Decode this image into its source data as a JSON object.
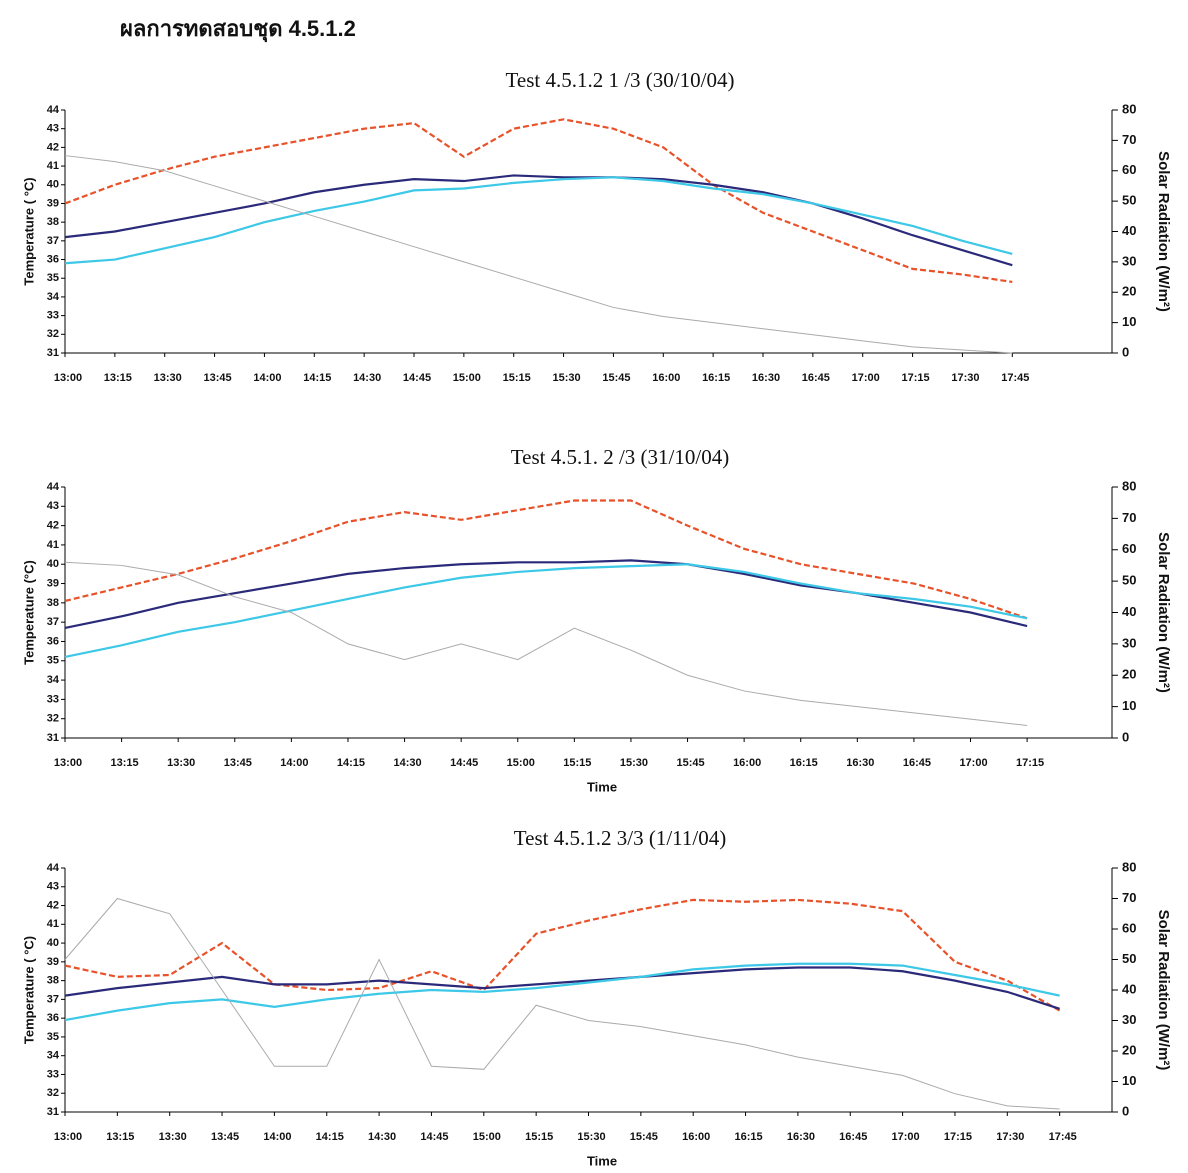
{
  "header": {
    "title": "ผลการทดสอบชุด 4.5.1.2"
  },
  "chart_data": [
    {
      "type": "line",
      "title": "Test 4.5.1.2 1 /3 (30/10/04)",
      "y_label": "Temperature ( °C)",
      "y2_label": "Solar Radiation (W/m²)",
      "categories": [
        "13:00",
        "13:15",
        "13:30",
        "13:45",
        "14:00",
        "14:15",
        "14:30",
        "14:45",
        "15:00",
        "15:15",
        "15:30",
        "15:45",
        "16:00",
        "16:15",
        "16:30",
        "16:45",
        "17:00",
        "17:15",
        "17:30",
        "17:45"
      ],
      "ylim": [
        31,
        44
      ],
      "yticks": [
        31,
        32,
        33,
        34,
        35,
        36,
        37,
        38,
        39,
        40,
        41,
        42,
        43,
        44
      ],
      "y2lim": [
        0,
        80
      ],
      "y2ticks": [
        0,
        10,
        20,
        30,
        40,
        50,
        60,
        70,
        80
      ],
      "series": [
        {
          "color": "#e8522a",
          "dash": true,
          "values": [
            39,
            40,
            40.8,
            41.5,
            42,
            42.5,
            43,
            43.3,
            41.5,
            43,
            43.5,
            43,
            42,
            40,
            38.5,
            37.5,
            36.5,
            35.5,
            35.2,
            34.8
          ]
        },
        {
          "color": "#2b2a7a",
          "values": [
            37.2,
            37.5,
            38,
            38.5,
            39,
            39.6,
            40,
            40.3,
            40.2,
            40.5,
            40.4,
            40.4,
            40.3,
            40,
            39.6,
            39,
            38.2,
            37.3,
            36.5,
            35.7
          ]
        },
        {
          "color": "#3cc8e6",
          "values": [
            35.8,
            36,
            36.6,
            37.2,
            38,
            38.6,
            39.1,
            39.7,
            39.8,
            40.1,
            40.3,
            40.4,
            40.2,
            39.8,
            39.5,
            39,
            38.4,
            37.8,
            37,
            36.3
          ]
        },
        {
          "color": "#aaaaaa",
          "axis": "y2",
          "values": [
            65,
            63,
            60,
            55,
            50,
            45,
            40,
            35,
            30,
            25,
            20,
            15,
            12,
            10,
            8,
            6,
            4,
            2,
            1,
            0
          ]
        }
      ]
    },
    {
      "type": "line",
      "title": "Test 4.5.1. 2 /3 (31/10/04)",
      "y_label": "Temperature  (°C)",
      "y2_label": "Solar Radiation (W/m²)",
      "x_label": "Time",
      "categories": [
        "13:00",
        "13:15",
        "13:30",
        "13:45",
        "14:00",
        "14:15",
        "14:30",
        "14:45",
        "15:00",
        "15:15",
        "15:30",
        "15:45",
        "16:00",
        "16:15",
        "16:30",
        "16:45",
        "17:00",
        "17:15"
      ],
      "ylim": [
        31,
        44
      ],
      "yticks": [
        31,
        32,
        33,
        34,
        35,
        36,
        37,
        38,
        39,
        40,
        41,
        42,
        43,
        44
      ],
      "y2lim": [
        0,
        80
      ],
      "y2ticks": [
        0,
        10,
        20,
        30,
        40,
        50,
        60,
        70,
        80
      ],
      "series": [
        {
          "color": "#e8522a",
          "dash": true,
          "values": [
            38.1,
            38.8,
            39.5,
            40.3,
            41.2,
            42.2,
            42.7,
            42.3,
            42.8,
            43.3,
            43.3,
            42,
            40.8,
            40,
            39.5,
            39,
            38.2,
            37.2
          ]
        },
        {
          "color": "#2b2a7a",
          "values": [
            36.7,
            37.3,
            38,
            38.5,
            39,
            39.5,
            39.8,
            40,
            40.1,
            40.1,
            40.2,
            40,
            39.5,
            38.9,
            38.5,
            38,
            37.5,
            36.8
          ]
        },
        {
          "color": "#3cc8e6",
          "values": [
            35.2,
            35.8,
            36.5,
            37,
            37.6,
            38.2,
            38.8,
            39.3,
            39.6,
            39.8,
            39.9,
            40,
            39.6,
            39,
            38.5,
            38.2,
            37.8,
            37.2
          ]
        },
        {
          "color": "#aaaaaa",
          "axis": "y2",
          "values": [
            56,
            55,
            52,
            45,
            40,
            30,
            25,
            30,
            25,
            35,
            28,
            20,
            15,
            12,
            10,
            8,
            6,
            4
          ]
        }
      ]
    },
    {
      "type": "line",
      "title": "Test 4.5.1.2 3/3  (1/11/04)",
      "y_label": "Temperature ( °C)",
      "y2_label": "Solar Radiation (W/m²)",
      "x_label": "Time",
      "categories": [
        "13:00",
        "13:15",
        "13:30",
        "13:45",
        "14:00",
        "14:15",
        "14:30",
        "14:45",
        "15:00",
        "15:15",
        "15:30",
        "15:45",
        "16:00",
        "16:15",
        "16:30",
        "16:45",
        "17:00",
        "17:15",
        "17:30",
        "17:45"
      ],
      "ylim": [
        31,
        44
      ],
      "yticks": [
        31,
        32,
        33,
        34,
        35,
        36,
        37,
        38,
        39,
        40,
        41,
        42,
        43,
        44
      ],
      "y2lim": [
        0,
        80
      ],
      "y2ticks": [
        0,
        10,
        20,
        30,
        40,
        50,
        60,
        70,
        80
      ],
      "series": [
        {
          "color": "#e8522a",
          "dash": true,
          "values": [
            38.8,
            38.2,
            38.3,
            40,
            37.8,
            37.5,
            37.6,
            38.5,
            37.5,
            40.5,
            41.2,
            41.8,
            42.3,
            42.2,
            42.3,
            42.1,
            41.7,
            39,
            38,
            36.4
          ]
        },
        {
          "color": "#2b2a7a",
          "values": [
            37.2,
            37.6,
            37.9,
            38.2,
            37.8,
            37.8,
            38,
            37.8,
            37.6,
            37.8,
            38,
            38.2,
            38.4,
            38.6,
            38.7,
            38.7,
            38.5,
            38,
            37.4,
            36.5
          ]
        },
        {
          "color": "#3cc8e6",
          "values": [
            35.9,
            36.4,
            36.8,
            37,
            36.6,
            37,
            37.3,
            37.5,
            37.4,
            37.6,
            37.9,
            38.2,
            38.6,
            38.8,
            38.9,
            38.9,
            38.8,
            38.3,
            37.8,
            37.2
          ]
        },
        {
          "color": "#aaaaaa",
          "axis": "y2",
          "values": [
            50,
            70,
            65,
            40,
            15,
            15,
            50,
            15,
            14,
            35,
            30,
            28,
            25,
            22,
            18,
            15,
            12,
            6,
            2,
            1
          ]
        }
      ]
    }
  ]
}
